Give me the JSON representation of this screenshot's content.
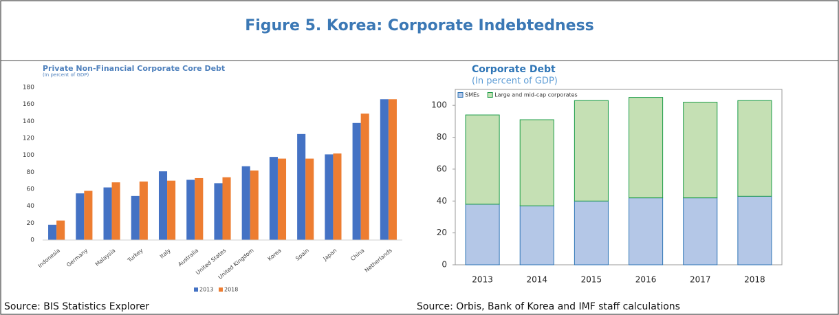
{
  "figure_title": "Figure 5. Korea: Corporate Indebtedness",
  "chart_data": [
    {
      "type": "bar",
      "title": "Private Non-Financial Corporate Core Debt",
      "subtitle": "(In percent of GDP)",
      "source": "Source: BIS Statistics Explorer",
      "categories": [
        "Indonesia",
        "Germany",
        "Malaysia",
        "Turkey",
        "Italy",
        "Australia",
        "United States",
        "United Kingdom",
        "Korea",
        "Spain",
        "Japan",
        "China",
        "Netherlands"
      ],
      "series": [
        {
          "name": "2013",
          "color": "#4472c4",
          "values": [
            18,
            55,
            62,
            52,
            81,
            71,
            67,
            87,
            98,
            125,
            101,
            138,
            166
          ]
        },
        {
          "name": "2018",
          "color": "#ed7d31",
          "values": [
            23,
            58,
            68,
            69,
            70,
            73,
            74,
            82,
            96,
            96,
            102,
            149,
            166
          ]
        }
      ],
      "ylim": [
        0,
        180
      ],
      "yticks": [
        0,
        20,
        40,
        60,
        80,
        100,
        120,
        140,
        160,
        180
      ],
      "grid": false,
      "legend": "bottom"
    },
    {
      "type": "stacked_bar",
      "title": "Corporate Debt",
      "subtitle": "(In percent of GDP)",
      "source": "Source: Orbis, Bank of Korea and IMF staff calculations",
      "categories": [
        "2013",
        "2014",
        "2015",
        "2016",
        "2017",
        "2018"
      ],
      "series": [
        {
          "name": "SMEs",
          "color": "#b4c7e7",
          "edge": "#2e75b6",
          "values": [
            38,
            37,
            40,
            42,
            42,
            43
          ]
        },
        {
          "name": "Large and mid-cap corporates",
          "color": "#c5e0b4",
          "edge": "#1a9c47",
          "values": [
            56,
            54,
            63,
            63,
            60,
            60
          ]
        }
      ],
      "ylim": [
        0,
        110
      ],
      "yticks": [
        0,
        20,
        40,
        60,
        80,
        100
      ],
      "grid": false,
      "legend": "top left"
    }
  ]
}
